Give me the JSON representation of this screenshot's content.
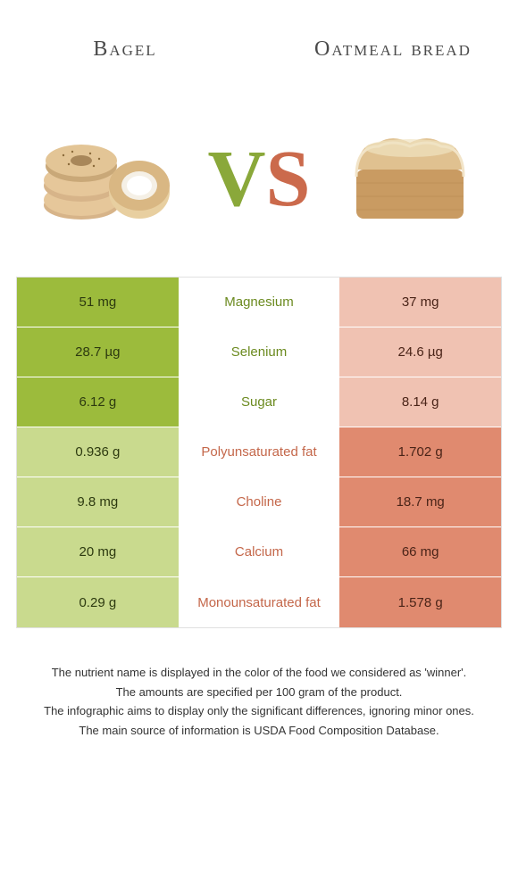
{
  "left_food": {
    "title": "Bagel"
  },
  "right_food": {
    "title": "Oatmeal bread"
  },
  "vs": {
    "v": "V",
    "s": "S"
  },
  "colors": {
    "left_strong": "#9cbb3c",
    "left_faded": "#c9da8e",
    "right_strong": "#e08a6f",
    "right_faded": "#f0c2b2",
    "left_text": "#6b8a1f",
    "right_text": "#c4674a"
  },
  "rows": [
    {
      "left": "51 mg",
      "name": "Magnesium",
      "right": "37 mg",
      "winner": "left"
    },
    {
      "left": "28.7 µg",
      "name": "Selenium",
      "right": "24.6 µg",
      "winner": "left"
    },
    {
      "left": "6.12 g",
      "name": "Sugar",
      "right": "8.14 g",
      "winner": "left"
    },
    {
      "left": "0.936 g",
      "name": "Polyunsaturated fat",
      "right": "1.702 g",
      "winner": "right"
    },
    {
      "left": "9.8 mg",
      "name": "Choline",
      "right": "18.7 mg",
      "winner": "right"
    },
    {
      "left": "20 mg",
      "name": "Calcium",
      "right": "66 mg",
      "winner": "right"
    },
    {
      "left": "0.29 g",
      "name": "Monounsaturated fat",
      "right": "1.578 g",
      "winner": "right"
    }
  ],
  "footer": [
    "The nutrient name is displayed in the color of the food we considered as 'winner'.",
    "The amounts are specified per 100 gram of the product.",
    "The infographic aims to display only the significant differences, ignoring minor ones.",
    "The main source of information is USDA Food Composition Database."
  ]
}
